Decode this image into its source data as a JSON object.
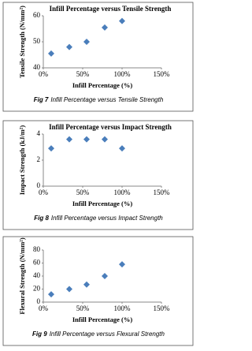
{
  "chart_data": [
    {
      "type": "scatter",
      "title": "Infill Percentage versus Tensile Strength",
      "x_label": "Infill Percentage (%)",
      "y_label": "Tensile Strength (N/mm²)",
      "x": [
        10,
        33,
        55,
        78,
        100
      ],
      "values": [
        45.5,
        48,
        50,
        55.5,
        58
      ],
      "color": "#4a7ebb",
      "xlim": [
        0,
        150
      ],
      "xticks": [
        {
          "value": 0,
          "label": "0%"
        },
        {
          "value": 50,
          "label": "50%"
        },
        {
          "value": 100,
          "label": "100%"
        },
        {
          "value": 150,
          "label": "150%"
        }
      ],
      "ylim": [
        40,
        60
      ],
      "yticks": [
        40,
        50,
        60
      ],
      "caption": {
        "label": "Fig 7",
        "text": "Infill Percentage versus Tensile Strength"
      }
    },
    {
      "type": "scatter",
      "title": "Infill Percentage versus Impact Strength",
      "x_label": "Infill Percentage (%)",
      "y_label": "Impact Strength (kJ/m²)",
      "x": [
        10,
        33,
        55,
        78,
        100
      ],
      "values": [
        2.9,
        3.6,
        3.6,
        3.6,
        2.9
      ],
      "color": "#4a7ebb",
      "xlim": [
        0,
        150
      ],
      "xticks": [
        {
          "value": 0,
          "label": "0%"
        },
        {
          "value": 50,
          "label": "50%"
        },
        {
          "value": 100,
          "label": "100%"
        },
        {
          "value": 150,
          "label": "150%"
        }
      ],
      "ylim": [
        0,
        4
      ],
      "yticks": [
        0,
        2,
        4
      ],
      "caption": {
        "label": "Fig 8",
        "text": "Infill Percentage versus Impact Strength"
      }
    },
    {
      "type": "scatter",
      "x_label": "Infill Percentage (%)",
      "y_label": "Flexural Strength (N/mm²)",
      "x": [
        10,
        33,
        55,
        78,
        100
      ],
      "values": [
        12,
        20,
        27,
        40,
        58
      ],
      "color": "#4a7ebb",
      "xlim": [
        0,
        150
      ],
      "xticks": [
        {
          "value": 0,
          "label": "0%"
        },
        {
          "value": 50,
          "label": "50%"
        },
        {
          "value": 100,
          "label": "100%"
        },
        {
          "value": 150,
          "label": "150%"
        }
      ],
      "ylim": [
        0,
        80
      ],
      "yticks": [
        0,
        20,
        40,
        60,
        80
      ],
      "caption": {
        "label": "Fig 9",
        "text": "Infill Percentage versus Flexural Strength"
      }
    }
  ]
}
